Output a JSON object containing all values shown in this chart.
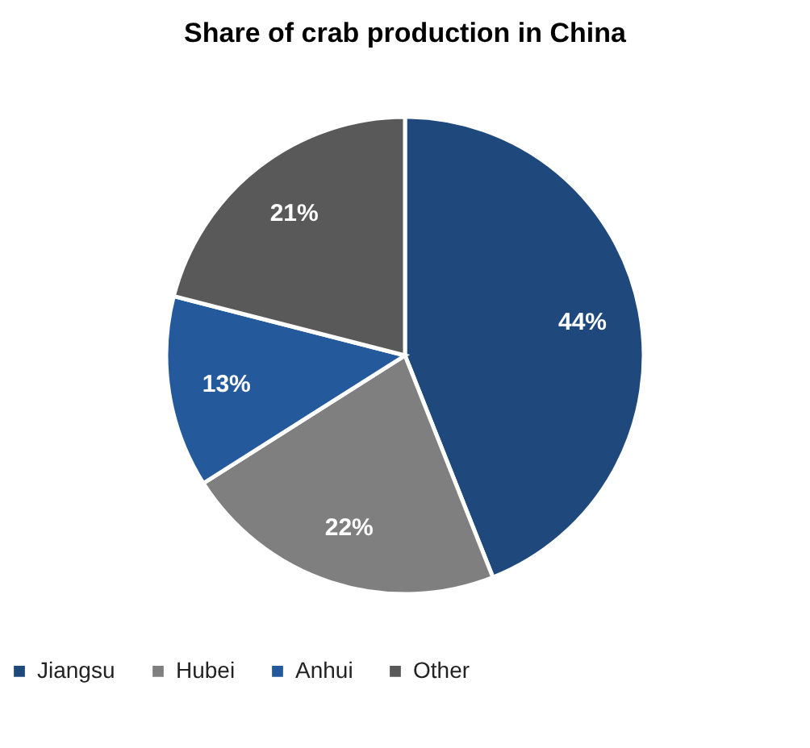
{
  "chart_data": {
    "type": "pie",
    "title": "Share of crab production in China",
    "categories": [
      "Jiangsu",
      "Hubei",
      "Anhui",
      "Other"
    ],
    "values": [
      44,
      22,
      13,
      21
    ],
    "colors": [
      "#1f497d",
      "#7f7f7f",
      "#245a9c",
      "#595959"
    ],
    "value_labels": [
      "44%",
      "22%",
      "13%",
      "21%"
    ],
    "legend": "bottom"
  }
}
